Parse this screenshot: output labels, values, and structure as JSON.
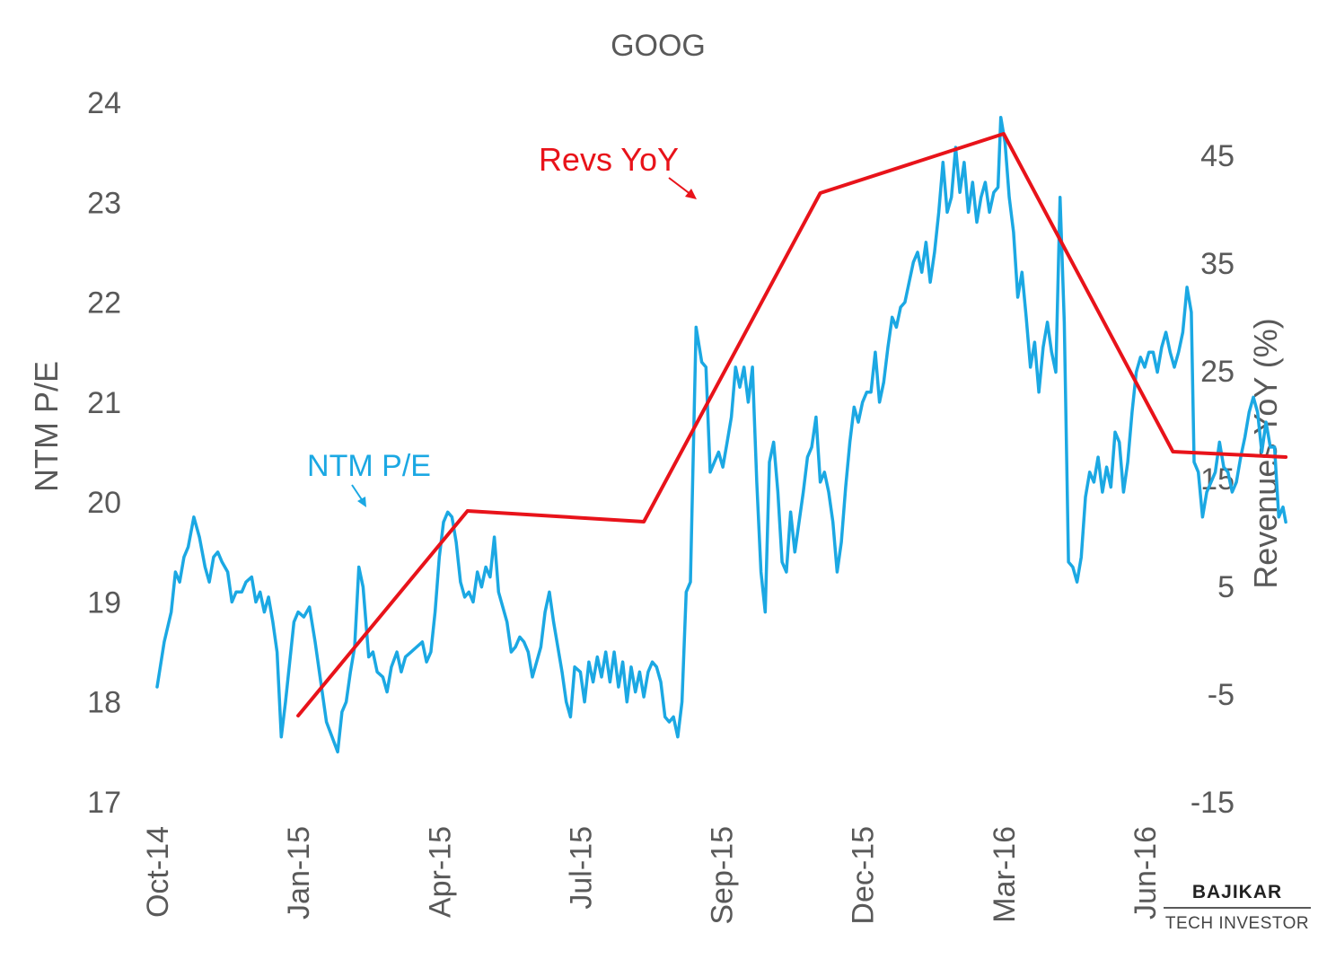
{
  "chart_data": {
    "type": "line",
    "title": "GOOG",
    "y_left_label": "NTM P/E",
    "y_right_label": "Revenues YoY (%)",
    "y_left_ticks": [
      17,
      18,
      19,
      20,
      21,
      22,
      23,
      24
    ],
    "y_left_lim": [
      17,
      24
    ],
    "y_right_ticks": [
      -15,
      -5,
      5,
      15,
      25,
      35,
      45
    ],
    "y_right_lim": [
      -15,
      50
    ],
    "x_ticks": [
      "Oct-14",
      "Jan-15",
      "Apr-15",
      "Jul-15",
      "Sep-15",
      "Dec-15",
      "Mar-16",
      "Jun-16"
    ],
    "grid": false,
    "series": [
      {
        "name": "NTM P/E",
        "axis": "left",
        "color": "#1ba8e3",
        "points": [
          [
            0,
            18.15
          ],
          [
            0.05,
            18.6
          ],
          [
            0.1,
            18.9
          ],
          [
            0.13,
            19.3
          ],
          [
            0.16,
            19.2
          ],
          [
            0.19,
            19.45
          ],
          [
            0.22,
            19.55
          ],
          [
            0.26,
            19.85
          ],
          [
            0.3,
            19.65
          ],
          [
            0.34,
            19.35
          ],
          [
            0.37,
            19.2
          ],
          [
            0.4,
            19.45
          ],
          [
            0.43,
            19.5
          ],
          [
            0.46,
            19.4
          ],
          [
            0.5,
            19.3
          ],
          [
            0.53,
            19.0
          ],
          [
            0.56,
            19.1
          ],
          [
            0.6,
            19.1
          ],
          [
            0.63,
            19.2
          ],
          [
            0.67,
            19.25
          ],
          [
            0.7,
            19.0
          ],
          [
            0.73,
            19.1
          ],
          [
            0.76,
            18.9
          ],
          [
            0.79,
            19.05
          ],
          [
            0.82,
            18.8
          ],
          [
            0.85,
            18.5
          ],
          [
            0.88,
            17.65
          ],
          [
            0.91,
            18.0
          ],
          [
            0.94,
            18.4
          ],
          [
            0.97,
            18.8
          ],
          [
            1.0,
            18.9
          ],
          [
            1.04,
            18.85
          ],
          [
            1.08,
            18.95
          ],
          [
            1.12,
            18.6
          ],
          [
            1.16,
            18.2
          ],
          [
            1.2,
            17.8
          ],
          [
            1.24,
            17.65
          ],
          [
            1.28,
            17.5
          ],
          [
            1.31,
            17.9
          ],
          [
            1.34,
            18.0
          ],
          [
            1.37,
            18.3
          ],
          [
            1.4,
            18.55
          ],
          [
            1.43,
            19.35
          ],
          [
            1.46,
            19.15
          ],
          [
            1.5,
            18.45
          ],
          [
            1.53,
            18.5
          ],
          [
            1.56,
            18.3
          ],
          [
            1.6,
            18.25
          ],
          [
            1.63,
            18.1
          ],
          [
            1.66,
            18.35
          ],
          [
            1.7,
            18.5
          ],
          [
            1.73,
            18.3
          ],
          [
            1.76,
            18.45
          ],
          [
            1.8,
            18.5
          ],
          [
            1.84,
            18.55
          ],
          [
            1.88,
            18.6
          ],
          [
            1.91,
            18.4
          ],
          [
            1.94,
            18.5
          ],
          [
            1.97,
            18.9
          ],
          [
            2.0,
            19.45
          ],
          [
            2.03,
            19.8
          ],
          [
            2.06,
            19.9
          ],
          [
            2.09,
            19.85
          ],
          [
            2.12,
            19.6
          ],
          [
            2.15,
            19.2
          ],
          [
            2.18,
            19.05
          ],
          [
            2.21,
            19.1
          ],
          [
            2.24,
            19.0
          ],
          [
            2.27,
            19.3
          ],
          [
            2.3,
            19.15
          ],
          [
            2.33,
            19.35
          ],
          [
            2.36,
            19.25
          ],
          [
            2.39,
            19.65
          ],
          [
            2.42,
            19.1
          ],
          [
            2.45,
            18.95
          ],
          [
            2.48,
            18.8
          ],
          [
            2.51,
            18.5
          ],
          [
            2.54,
            18.55
          ],
          [
            2.57,
            18.65
          ],
          [
            2.6,
            18.6
          ],
          [
            2.63,
            18.5
          ],
          [
            2.66,
            18.25
          ],
          [
            2.69,
            18.4
          ],
          [
            2.72,
            18.55
          ],
          [
            2.75,
            18.9
          ],
          [
            2.78,
            19.1
          ],
          [
            2.81,
            18.8
          ],
          [
            2.84,
            18.55
          ],
          [
            2.87,
            18.3
          ],
          [
            2.9,
            18.0
          ],
          [
            2.93,
            17.85
          ],
          [
            2.96,
            18.35
          ],
          [
            3.0,
            18.3
          ],
          [
            3.03,
            18.0
          ],
          [
            3.06,
            18.4
          ],
          [
            3.09,
            18.2
          ],
          [
            3.12,
            18.45
          ],
          [
            3.15,
            18.25
          ],
          [
            3.18,
            18.5
          ],
          [
            3.21,
            18.2
          ],
          [
            3.24,
            18.5
          ],
          [
            3.27,
            18.15
          ],
          [
            3.3,
            18.4
          ],
          [
            3.33,
            18.0
          ],
          [
            3.36,
            18.35
          ],
          [
            3.39,
            18.1
          ],
          [
            3.42,
            18.3
          ],
          [
            3.45,
            18.05
          ],
          [
            3.48,
            18.3
          ],
          [
            3.51,
            18.4
          ],
          [
            3.54,
            18.35
          ],
          [
            3.57,
            18.2
          ],
          [
            3.6,
            17.85
          ],
          [
            3.63,
            17.8
          ],
          [
            3.66,
            17.85
          ],
          [
            3.69,
            17.65
          ],
          [
            3.72,
            18.0
          ],
          [
            3.75,
            19.1
          ],
          [
            3.78,
            19.2
          ],
          [
            3.82,
            21.75
          ],
          [
            3.86,
            21.4
          ],
          [
            3.89,
            21.35
          ],
          [
            3.92,
            20.3
          ],
          [
            3.95,
            20.4
          ],
          [
            3.98,
            20.5
          ],
          [
            4.01,
            20.35
          ],
          [
            4.04,
            20.6
          ],
          [
            4.07,
            20.85
          ],
          [
            4.1,
            21.35
          ],
          [
            4.13,
            21.15
          ],
          [
            4.16,
            21.35
          ],
          [
            4.19,
            21.0
          ],
          [
            4.22,
            21.35
          ],
          [
            4.25,
            20.2
          ],
          [
            4.28,
            19.3
          ],
          [
            4.31,
            18.9
          ],
          [
            4.34,
            20.4
          ],
          [
            4.37,
            20.6
          ],
          [
            4.4,
            20.1
          ],
          [
            4.43,
            19.4
          ],
          [
            4.46,
            19.3
          ],
          [
            4.49,
            19.9
          ],
          [
            4.52,
            19.5
          ],
          [
            4.55,
            19.8
          ],
          [
            4.58,
            20.1
          ],
          [
            4.61,
            20.45
          ],
          [
            4.64,
            20.55
          ],
          [
            4.67,
            20.85
          ],
          [
            4.7,
            20.2
          ],
          [
            4.73,
            20.3
          ],
          [
            4.76,
            20.1
          ],
          [
            4.79,
            19.8
          ],
          [
            4.82,
            19.3
          ],
          [
            4.85,
            19.6
          ],
          [
            4.88,
            20.15
          ],
          [
            4.91,
            20.6
          ],
          [
            4.94,
            20.95
          ],
          [
            4.97,
            20.8
          ],
          [
            5.0,
            21.0
          ],
          [
            5.03,
            21.1
          ],
          [
            5.06,
            21.1
          ],
          [
            5.09,
            21.5
          ],
          [
            5.12,
            21.0
          ],
          [
            5.15,
            21.2
          ],
          [
            5.18,
            21.55
          ],
          [
            5.21,
            21.85
          ],
          [
            5.24,
            21.75
          ],
          [
            5.27,
            21.95
          ],
          [
            5.3,
            22.0
          ],
          [
            5.33,
            22.2
          ],
          [
            5.36,
            22.4
          ],
          [
            5.39,
            22.5
          ],
          [
            5.42,
            22.3
          ],
          [
            5.45,
            22.6
          ],
          [
            5.48,
            22.2
          ],
          [
            5.51,
            22.5
          ],
          [
            5.54,
            22.9
          ],
          [
            5.57,
            23.4
          ],
          [
            5.6,
            22.9
          ],
          [
            5.63,
            23.05
          ],
          [
            5.66,
            23.55
          ],
          [
            5.69,
            23.1
          ],
          [
            5.72,
            23.4
          ],
          [
            5.75,
            22.9
          ],
          [
            5.78,
            23.2
          ],
          [
            5.81,
            22.8
          ],
          [
            5.84,
            23.05
          ],
          [
            5.87,
            23.2
          ],
          [
            5.9,
            22.9
          ],
          [
            5.93,
            23.1
          ],
          [
            5.96,
            23.15
          ],
          [
            5.98,
            23.85
          ],
          [
            6.01,
            23.6
          ],
          [
            6.04,
            23.05
          ],
          [
            6.07,
            22.7
          ],
          [
            6.1,
            22.05
          ],
          [
            6.13,
            22.3
          ],
          [
            6.16,
            21.85
          ],
          [
            6.19,
            21.35
          ],
          [
            6.22,
            21.6
          ],
          [
            6.25,
            21.1
          ],
          [
            6.28,
            21.55
          ],
          [
            6.31,
            21.8
          ],
          [
            6.34,
            21.5
          ],
          [
            6.37,
            21.3
          ],
          [
            6.4,
            23.05
          ],
          [
            6.43,
            21.8
          ],
          [
            6.46,
            19.4
          ],
          [
            6.49,
            19.35
          ],
          [
            6.52,
            19.2
          ],
          [
            6.55,
            19.45
          ],
          [
            6.58,
            20.05
          ],
          [
            6.61,
            20.3
          ],
          [
            6.64,
            20.2
          ],
          [
            6.67,
            20.45
          ],
          [
            6.7,
            20.1
          ],
          [
            6.73,
            20.35
          ],
          [
            6.76,
            20.15
          ],
          [
            6.79,
            20.7
          ],
          [
            6.82,
            20.6
          ],
          [
            6.85,
            20.1
          ],
          [
            6.88,
            20.4
          ],
          [
            6.91,
            20.9
          ],
          [
            6.94,
            21.3
          ],
          [
            6.97,
            21.45
          ],
          [
            7.0,
            21.35
          ],
          [
            7.03,
            21.5
          ],
          [
            7.06,
            21.5
          ],
          [
            7.09,
            21.3
          ],
          [
            7.12,
            21.55
          ],
          [
            7.15,
            21.7
          ],
          [
            7.18,
            21.5
          ],
          [
            7.21,
            21.35
          ],
          [
            7.24,
            21.5
          ],
          [
            7.27,
            21.7
          ],
          [
            7.3,
            22.15
          ],
          [
            7.33,
            21.9
          ],
          [
            7.35,
            20.4
          ],
          [
            7.38,
            20.3
          ],
          [
            7.41,
            19.85
          ],
          [
            7.44,
            20.1
          ],
          [
            7.47,
            20.2
          ],
          [
            7.5,
            20.3
          ],
          [
            7.53,
            20.6
          ],
          [
            7.56,
            20.35
          ],
          [
            7.59,
            20.3
          ],
          [
            7.62,
            20.1
          ],
          [
            7.65,
            20.2
          ],
          [
            7.68,
            20.45
          ],
          [
            7.71,
            20.65
          ],
          [
            7.74,
            20.9
          ],
          [
            7.77,
            21.05
          ],
          [
            7.8,
            20.9
          ],
          [
            7.83,
            20.5
          ],
          [
            7.86,
            20.8
          ],
          [
            7.89,
            20.55
          ],
          [
            7.92,
            20.55
          ],
          [
            7.95,
            19.85
          ],
          [
            7.98,
            19.95
          ],
          [
            8.0,
            19.8
          ]
        ]
      },
      {
        "name": "Revs YoY",
        "axis": "right",
        "color": "#e8131a",
        "points": [
          [
            1.0,
            -7.0
          ],
          [
            2.2,
            12.0
          ],
          [
            3.45,
            11.0
          ],
          [
            4.7,
            41.5
          ],
          [
            6.0,
            47.0
          ],
          [
            7.2,
            17.5
          ],
          [
            8.0,
            17.0
          ]
        ]
      }
    ],
    "annotations": [
      {
        "text": "Revs YoY",
        "color": "#e8131a"
      },
      {
        "text": "NTM P/E",
        "color": "#1ba8e3"
      }
    ]
  },
  "branding": {
    "main": "BAJIKAR",
    "sub": "TECH INVESTOR"
  }
}
